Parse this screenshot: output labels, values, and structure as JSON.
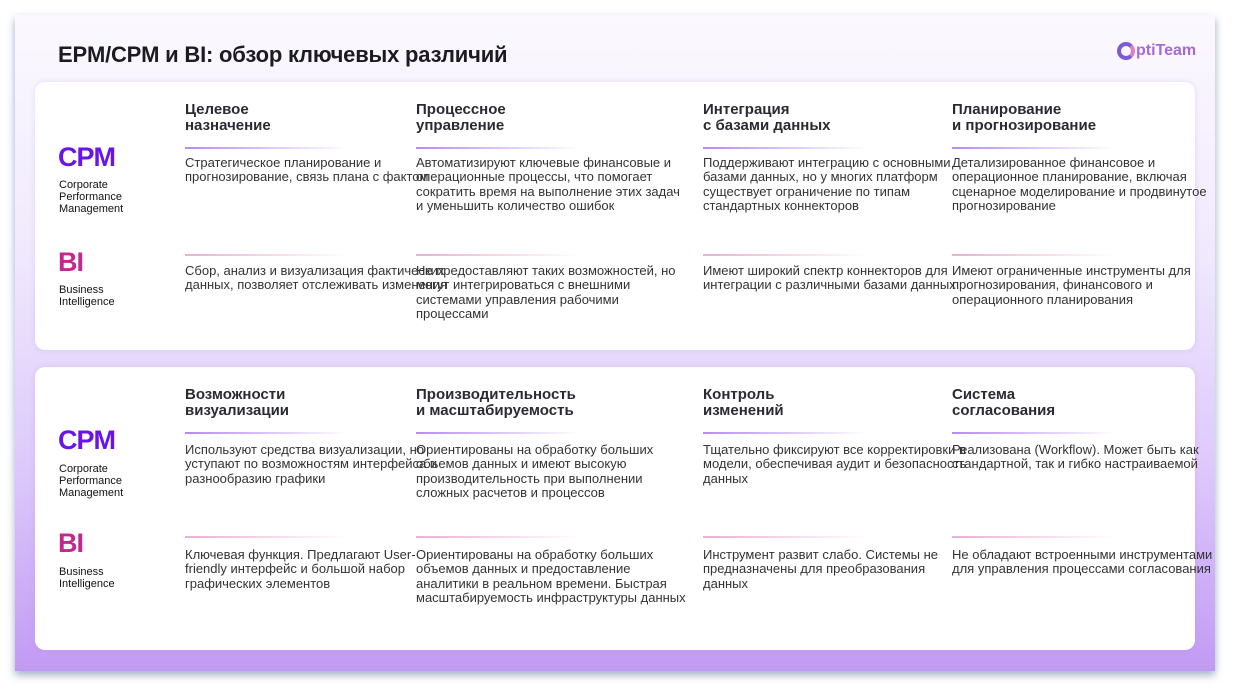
{
  "title": "EPM/CPM и BI: обзор ключевых различий",
  "logo": {
    "text": "ptiTeam",
    "full": "OptiTeam"
  },
  "colors": {
    "cpm": "#6a14e8",
    "bi": "#c3288e"
  },
  "rows": {
    "cpm": {
      "abbr": "CPM",
      "full": [
        "Corporate",
        "Performance",
        "Management"
      ]
    },
    "bi": {
      "abbr": "BI",
      "full": [
        "Business",
        "Intelligence"
      ]
    }
  },
  "sections": [
    {
      "columns": [
        {
          "header": [
            "Целевое",
            "назначение"
          ],
          "cpm": "Стратегическое планирование и прогнозирование, связь плана с фактом",
          "bi": "Сбор, анализ и визуализация фактических данных, позволяет отслеживать изменения"
        },
        {
          "header": [
            "Процессное",
            "управление"
          ],
          "cpm": "Автоматизируют ключевые финансовые и операционные процессы, что помогает сократить время на выполнение этих задач и уменьшить количество ошибок",
          "bi": "Не предоставляют таких возможностей, но могут интегрироваться с внешними системами управления рабочими процессами"
        },
        {
          "header": [
            "Интеграция",
            "с базами данных"
          ],
          "cpm": "Поддерживают интеграцию с основными базами данных, но у многих платформ существует ограничение по типам стандартных коннекторов",
          "bi": "Имеют широкий спектр коннекторов для интеграции с различными базами данных"
        },
        {
          "header": [
            "Планирование",
            "и прогнозирование"
          ],
          "cpm": "Детализированное финансовое и операционное планирование, включая сценарное моделирование и продвинутое прогнозирование",
          "bi": "Имеют ограниченные инструменты для прогнозирования, финансового и операционного планирования"
        }
      ]
    },
    {
      "columns": [
        {
          "header": [
            "Возможности",
            "визуализации"
          ],
          "cpm": "Используют средства визуализации, но уступают по возможностям интерфейса и разнообразию графики",
          "bi": "Ключевая функция. Предлагают User-friendly интерфейс и большой набор графических элементов"
        },
        {
          "header": [
            "Производительность",
            "и масштабируемость"
          ],
          "cpm": "Ориентированы на обработку больших объемов данных и имеют высокую производительность при выполнении сложных расчетов и процессов",
          "bi": "Ориентированы на обработку больших объемов данных и предоставление аналитики в реальном времени. Быстрая масштабируемость инфраструктуры данных"
        },
        {
          "header": [
            "Контроль",
            "изменений"
          ],
          "cpm": "Тщательно фиксируют все корректировки в модели, обеспечивая аудит и безопасность данных",
          "bi": "Инструмент развит слабо. Системы не предназначены для преобразования данных"
        },
        {
          "header": [
            "Система",
            "согласования"
          ],
          "cpm": "Реализована (Workflow). Может быть как стандартной, так и гибко настраиваемой",
          "bi": "Не обладают встроенными инструментами для управления процессами согласования"
        }
      ]
    }
  ]
}
